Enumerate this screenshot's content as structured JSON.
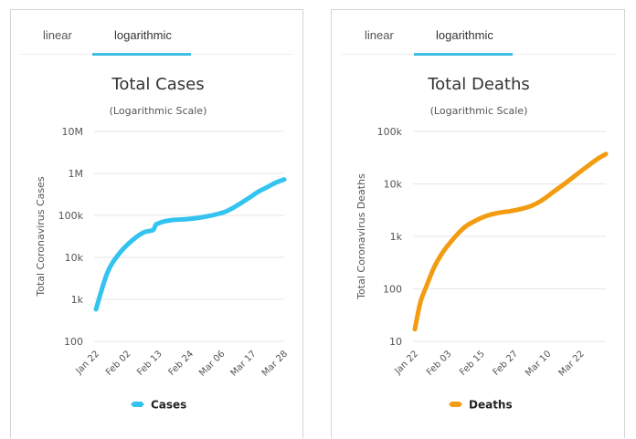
{
  "panels": [
    {
      "tabs": [
        {
          "label": "linear",
          "active": false
        },
        {
          "label": "logarithmic",
          "active": true
        }
      ]
    },
    {
      "tabs": [
        {
          "label": "linear",
          "active": false
        },
        {
          "label": "logarithmic",
          "active": true
        }
      ]
    }
  ],
  "chart_data": [
    {
      "type": "line",
      "title": "Total Cases",
      "subtitle": "(Logarithmic Scale)",
      "xlabel": "",
      "ylabel": "Total Coronavirus Cases",
      "yscale": "log",
      "ylim": [
        100,
        10000000
      ],
      "y_ticks": [
        100,
        1000,
        10000,
        100000,
        1000000,
        10000000
      ],
      "y_tick_labels": [
        "100",
        "1k",
        "10k",
        "100k",
        "1M",
        "10M"
      ],
      "x_tick_labels": [
        "Jan 22",
        "Feb 02",
        "Feb 13",
        "Feb 24",
        "Mar 06",
        "Mar 17",
        "Mar 28"
      ],
      "x_start": "Jan 22",
      "x_end": "Mar 28",
      "grid": true,
      "legend": "bottom-center",
      "series": [
        {
          "name": "Cases",
          "color": "#33c3f0",
          "x_days": [
            0,
            3,
            5,
            8,
            11,
            14,
            17,
            20,
            21,
            22,
            24,
            27,
            30,
            33,
            36,
            39,
            42,
            45,
            48,
            51,
            54,
            57,
            60,
            63,
            66
          ],
          "values": [
            580,
            2800,
            6000,
            12000,
            20000,
            30000,
            40000,
            45000,
            60000,
            65000,
            72000,
            78000,
            80000,
            83000,
            88000,
            95000,
            105000,
            120000,
            150000,
            200000,
            270000,
            370000,
            470000,
            600000,
            720000
          ]
        }
      ]
    },
    {
      "type": "line",
      "title": "Total Deaths",
      "subtitle": "(Logarithmic Scale)",
      "xlabel": "",
      "ylabel": "Total Coronavirus Deaths",
      "yscale": "log",
      "ylim": [
        10,
        100000
      ],
      "y_ticks": [
        10,
        100,
        1000,
        10000,
        100000
      ],
      "y_tick_labels": [
        "10",
        "100",
        "1k",
        "10k",
        "100k"
      ],
      "x_tick_labels": [
        "Jan 22",
        "Feb 03",
        "Feb 15",
        "Feb 27",
        "Mar 10",
        "Mar 22"
      ],
      "x_start": "Jan 22",
      "x_end": "Mar 31",
      "grid": true,
      "legend": "bottom-center",
      "series": [
        {
          "name": "Deaths",
          "color": "#f39c12",
          "x_days": [
            0,
            2,
            4,
            7,
            10,
            14,
            18,
            22,
            26,
            30,
            34,
            38,
            42,
            46,
            50,
            54,
            58,
            62,
            66,
            69
          ],
          "values": [
            17,
            56,
            106,
            260,
            490,
            910,
            1500,
            2000,
            2470,
            2800,
            3000,
            3300,
            3800,
            4900,
            7000,
            10000,
            14500,
            21000,
            30000,
            37000
          ]
        }
      ]
    }
  ]
}
